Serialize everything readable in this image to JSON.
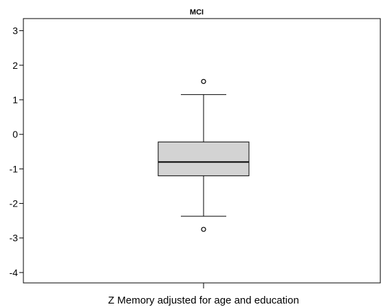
{
  "chart_data": {
    "type": "boxplot",
    "title": "MCI",
    "xlabel": "Z Memory adjusted for age and education",
    "ylabel": "",
    "ylim": [
      -4.3,
      3.35
    ],
    "yticks": [
      3,
      2,
      1,
      0,
      -1,
      -2,
      -3,
      -4
    ],
    "ytick_labels": [
      "3",
      "2",
      "1",
      "0",
      "-1",
      "-2",
      "-3",
      "-4"
    ],
    "grid": false,
    "box": {
      "whisker_low": -2.37,
      "q1": -1.2,
      "median": -0.8,
      "q3": -0.22,
      "whisker_high": 1.15
    },
    "outliers": [
      1.53,
      -2.75
    ],
    "colors": {
      "box_fill": "#d3d3d3",
      "line": "#000000",
      "outlier_fill": "#ffffff"
    }
  }
}
